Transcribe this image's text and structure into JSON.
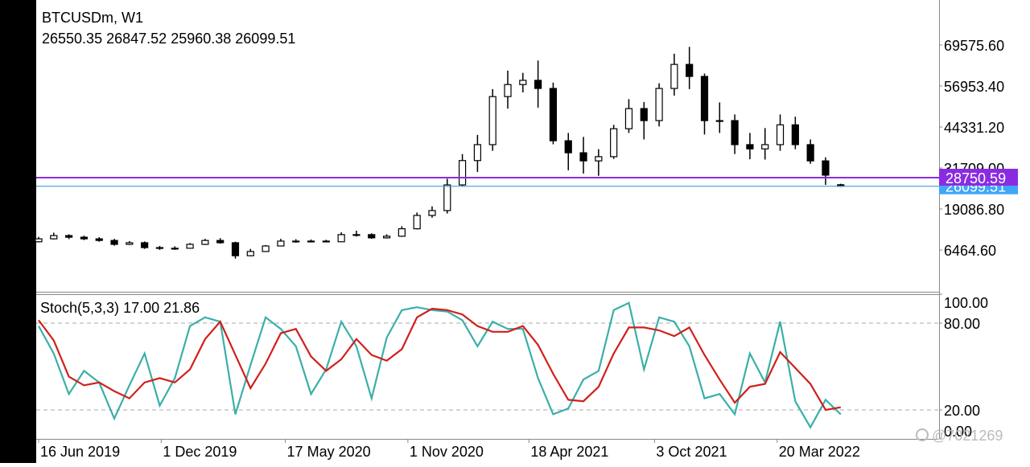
{
  "chart_data": {
    "type": "candlestick",
    "symbol": "BTCUSDm, W1",
    "open": [
      9000,
      9900,
      10900,
      10400,
      9900,
      9400,
      8200,
      8700,
      7200,
      7000,
      7000,
      8200,
      9400,
      8700,
      4700,
      6000,
      7700,
      9200,
      9200,
      9200,
      9000,
      11200,
      11200,
      10200,
      10700,
      13000,
      17100,
      18600,
      26500,
      34000,
      38900,
      53700,
      57400,
      58700,
      56200,
      40100,
      36400,
      33900,
      35200,
      43800,
      50000,
      46300,
      56200,
      63600,
      59900,
      46300,
      46300,
      38900,
      37600,
      38900,
      45000,
      38900,
      33900,
      26550.35
    ],
    "high": [
      10500,
      11800,
      11300,
      10900,
      10400,
      9900,
      9200,
      9100,
      7700,
      7600,
      8600,
      9900,
      10100,
      9000,
      6800,
      8000,
      9900,
      9800,
      9700,
      9600,
      11900,
      12400,
      11600,
      11300,
      13800,
      18000,
      19900,
      28400,
      36000,
      41900,
      56000,
      61700,
      61000,
      64800,
      58000,
      42500,
      41300,
      37500,
      45000,
      52900,
      52000,
      57800,
      66900,
      69000,
      60800,
      51900,
      48200,
      42500,
      44000,
      48200,
      47500,
      40500,
      35000,
      26847.52
    ],
    "low": [
      8800,
      9700,
      9800,
      9500,
      9000,
      7800,
      8000,
      6800,
      6500,
      6500,
      6900,
      8000,
      8400,
      3800,
      4500,
      5900,
      7600,
      8700,
      8800,
      8800,
      8900,
      10600,
      9900,
      10000,
      10500,
      12800,
      16400,
      17700,
      26000,
      30500,
      37000,
      50000,
      55000,
      50300,
      39000,
      31000,
      30000,
      29300,
      34500,
      42500,
      40500,
      44500,
      54000,
      56000,
      42000,
      42500,
      36000,
      34400,
      34300,
      37000,
      37500,
      33000,
      26500,
      25960.38
    ],
    "close": [
      9900,
      10900,
      10400,
      9900,
      9400,
      8200,
      8700,
      7200,
      7000,
      7000,
      8200,
      9400,
      8700,
      4700,
      6000,
      7700,
      9200,
      9200,
      9200,
      9000,
      11200,
      11200,
      10200,
      10700,
      13000,
      17100,
      18600,
      26500,
      34000,
      38900,
      53700,
      57400,
      58700,
      56200,
      40100,
      36400,
      33900,
      35200,
      43800,
      50000,
      46300,
      56200,
      63600,
      59900,
      46300,
      46300,
      38900,
      37600,
      38900,
      45000,
      38900,
      33900,
      29500,
      26099.51
    ],
    "xlim": [
      -0.16,
      59.5
    ],
    "xticks": [
      {
        "value": 0,
        "label": "16 Jun 2019"
      },
      {
        "value": 8.1,
        "label": "1 Dec 2019"
      },
      {
        "value": 16.3,
        "label": "17 May 2020"
      },
      {
        "value": 24.4,
        "label": "1 Nov 2020"
      },
      {
        "value": 32.4,
        "label": "18 Apr 2021"
      },
      {
        "value": 40.7,
        "label": "3 Oct 2021"
      },
      {
        "value": 48.8,
        "label": "20 Mar 2022"
      }
    ],
    "ylim": [
      -6403,
      83435
    ],
    "yticks": [
      {
        "value": 69575.6,
        "label": "69575.60"
      },
      {
        "value": 56953.4,
        "label": "56953.40"
      },
      {
        "value": 44331.2,
        "label": "44331.20"
      },
      {
        "value": 31709,
        "label": "31709.00"
      },
      {
        "value": 19086.8,
        "label": "19086.80"
      },
      {
        "value": 6464.6,
        "label": "6464.60"
      }
    ],
    "level": {
      "value": 28750.59,
      "label": "28750.59",
      "color": "#8a2be2"
    },
    "bid_color": "#40a0c8",
    "bid_label": "26099.51",
    "up_color": "#ffffff",
    "down_color": "#000000",
    "stoch": {
      "type": "line",
      "title": "Stoch(5,3,3)",
      "header_values": [
        "17.00",
        "21.86"
      ],
      "ylim": [
        0,
        100
      ],
      "yticks": [
        {
          "value": 100,
          "label": "100.00"
        },
        {
          "value": 80,
          "label": "80.00"
        },
        {
          "value": 20,
          "label": "20.00"
        },
        {
          "value": 0,
          "label": "0.00"
        }
      ],
      "levels": [
        80,
        20
      ],
      "series": [
        {
          "color": "#3aafa9",
          "values": [
            78,
            59,
            31,
            47,
            39,
            14,
            37,
            59,
            23,
            42,
            78,
            84,
            81,
            17,
            51,
            84,
            76,
            64,
            31,
            48,
            81,
            64,
            28,
            70,
            89,
            91,
            89,
            88,
            82,
            64,
            81,
            76,
            76,
            42,
            17,
            21,
            41,
            47,
            89,
            94,
            48,
            84,
            81,
            64,
            28,
            31,
            17,
            59,
            39,
            81,
            26,
            8,
            27,
            17
          ]
        },
        {
          "color": "#d0201c",
          "values": [
            82,
            68,
            43,
            37,
            39,
            33,
            28,
            39,
            42,
            39,
            48,
            69,
            81,
            58,
            35,
            52,
            73,
            76,
            57,
            47,
            55,
            69,
            58,
            54,
            62,
            84,
            90,
            89,
            86,
            78,
            74,
            74,
            78,
            65,
            45,
            27,
            26,
            36,
            59,
            77,
            77,
            75,
            71,
            77,
            58,
            41,
            25,
            36,
            38,
            60,
            49,
            38,
            20,
            21.86
          ]
        }
      ]
    },
    "watermark": "@7021269"
  }
}
